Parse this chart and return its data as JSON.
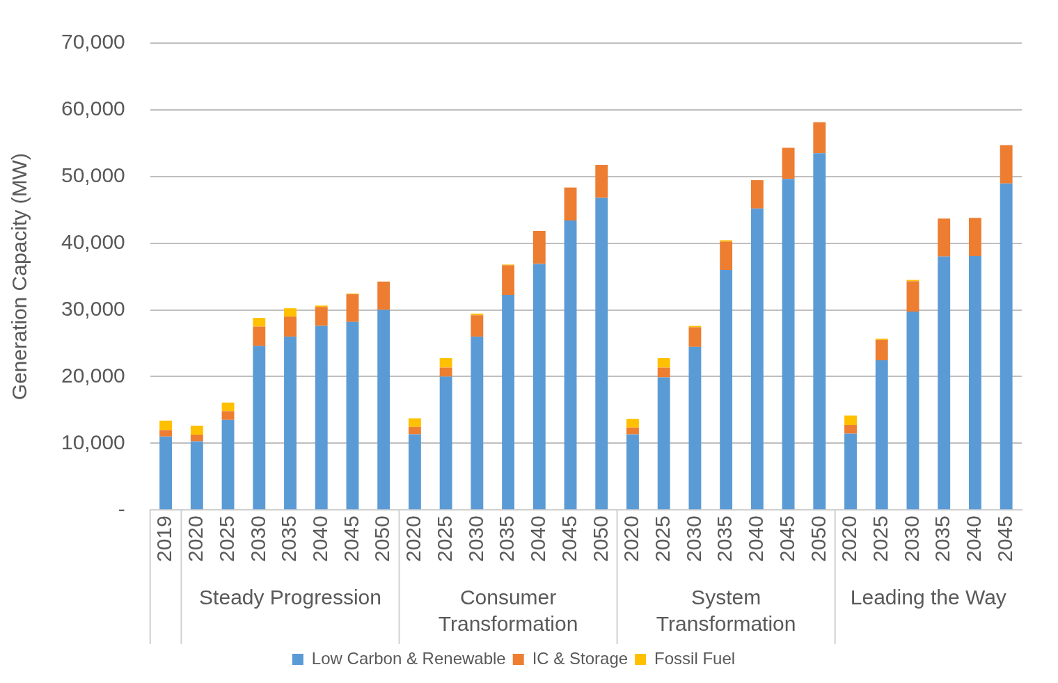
{
  "chart_data": {
    "type": "bar",
    "stacked": true,
    "ylabel": "Generation Capacity (MW)",
    "categories": [
      "2019",
      "2020",
      "2025",
      "2030",
      "2035",
      "2040",
      "2045",
      "2050",
      "2020",
      "2025",
      "2030",
      "2035",
      "2040",
      "2045",
      "2050",
      "2020",
      "2025",
      "2030",
      "2035",
      "2040",
      "2045",
      "2050",
      "2020",
      "2025",
      "2030",
      "2035",
      "2040",
      "2045"
    ],
    "annotations": [
      "Steady Progression",
      "Consumer Transformation",
      "System Transformation",
      "Leading the Way"
    ],
    "series": [
      {
        "name": "Low Carbon & Renewable",
        "color": "#5b9bd5",
        "values": [
          11000,
          10300,
          13500,
          24600,
          26000,
          27600,
          28200,
          30000,
          11350,
          20000,
          26000,
          32250,
          36900,
          43400,
          46800,
          11350,
          19900,
          24450,
          36000,
          45200,
          49650,
          53500,
          11450,
          22450,
          29750,
          38000,
          38100,
          48950
        ]
      },
      {
        "name": "IC & Storage",
        "color": "#ed7d31",
        "values": [
          1000,
          1000,
          1300,
          2900,
          3000,
          2850,
          4150,
          4250,
          1100,
          1350,
          3200,
          4450,
          4950,
          4950,
          4950,
          1000,
          1450,
          2950,
          4250,
          4250,
          4650,
          4650,
          1300,
          3050,
          4550,
          5700,
          5700,
          5750
        ]
      },
      {
        "name": "Fossil Fuel",
        "color": "#ffc000",
        "values": [
          1400,
          1350,
          1300,
          1300,
          1250,
          200,
          100,
          null,
          1300,
          1400,
          250,
          100,
          null,
          null,
          null,
          1300,
          1400,
          200,
          200,
          null,
          null,
          null,
          1400,
          200,
          200,
          null,
          null,
          null
        ]
      }
    ],
    "ylim": [
      0,
      70000
    ],
    "yticks": [
      {
        "value": 0,
        "label": "-"
      },
      {
        "value": 10000,
        "label": "10,000"
      },
      {
        "value": 20000,
        "label": "20,000"
      },
      {
        "value": 30000,
        "label": "30,000"
      },
      {
        "value": 40000,
        "label": "40,000"
      },
      {
        "value": 50000,
        "label": "50,000"
      },
      {
        "value": 60000,
        "label": "60,000"
      },
      {
        "value": 70000,
        "label": "70,000"
      }
    ],
    "grid": "y",
    "legend": "bottom"
  }
}
